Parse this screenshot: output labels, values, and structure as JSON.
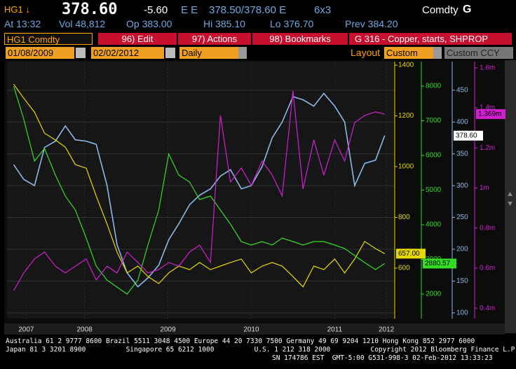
{
  "header": {
    "ticker": "HG1 ↓",
    "last": "378.60",
    "change": "-5.60",
    "flags": "E E",
    "bid_ask": "378.50/378.60 E",
    "size": "6x3",
    "asset_class": "Comdty",
    "function_key": "G",
    "time": "At 13:32",
    "volume": "Vol 48,812",
    "open": "Op 383.00",
    "high": "Hi 385.10",
    "low": "Lo 376.70",
    "prev": "Prev 384.20"
  },
  "toolbar": {
    "security": "HG1 Comdty",
    "edit": "96) Edit",
    "actions": "97) Actions",
    "bookmarks": "98) Bookmarks",
    "chart_name": "G 316 - Copper, starts, SHPROP",
    "start_date": "01/08/2009",
    "end_date": "02/02/2012",
    "period": "Daily",
    "layout_label": "Layout",
    "layout": "Custom",
    "currency": "Custom CCY"
  },
  "chart_data": {
    "type": "line",
    "grid": true,
    "x": [
      2007.15,
      2007.27,
      2007.4,
      2007.52,
      2007.65,
      2007.77,
      2007.89,
      2008.02,
      2008.14,
      2008.27,
      2008.39,
      2008.51,
      2008.64,
      2008.76,
      2008.89,
      2009.01,
      2009.13,
      2009.26,
      2009.38,
      2009.51,
      2009.63,
      2009.75,
      2009.88,
      2010.0,
      2010.13,
      2010.25,
      2010.37,
      2010.5,
      2010.62,
      2010.75,
      2010.87,
      2011.0,
      2011.12,
      2011.24,
      2011.36,
      2011.49,
      2011.6
    ],
    "xlim": [
      2007.07,
      2011.72
    ],
    "xticks": [
      {
        "value": 2007.3,
        "label": "2007"
      },
      2008,
      2009,
      2010,
      2011,
      {
        "value": 2011.62,
        "label": "2012"
      }
    ],
    "ylim": [
      91,
      495
    ],
    "yticks": [
      100,
      150,
      200,
      250,
      300,
      350,
      400,
      450
    ],
    "y2lim": [
      401,
      1414
    ],
    "y2ticks": [
      600,
      800,
      1000,
      1200,
      1400
    ],
    "y3lim": [
      1293,
      8707
    ],
    "y3ticks": [
      2000,
      3000,
      4000,
      5000,
      6000,
      7000,
      8000
    ],
    "y4lim": [
      348000,
      1631000
    ],
    "y4ticks": [
      {
        "value": 400000,
        "label": "0.4m"
      },
      {
        "value": 600000,
        "label": "0.6m"
      },
      {
        "value": 800000,
        "label": "0.8m"
      },
      {
        "value": 1000000,
        "label": "1m"
      },
      {
        "value": 1200000,
        "label": "1.2m"
      },
      {
        "value": 1400000,
        "label": "1.4m"
      },
      {
        "value": 1600000,
        "label": "1.6m"
      }
    ],
    "series": [
      {
        "name": "HG1 Comdty",
        "axis": "y",
        "color": "#8ab8e8",
        "values": [
          333,
          310,
          300,
          360,
          370,
          394,
          372,
          370,
          365,
          300,
          207,
          163,
          141,
          155,
          175,
          215,
          240,
          270,
          285,
          295,
          315,
          325,
          295,
          300,
          330,
          375,
          400,
          440,
          435,
          425,
          445,
          425,
          400,
          300,
          335,
          340,
          378.6
        ],
        "value_labels": [
          null,
          null,
          null,
          null,
          null,
          null,
          null,
          null,
          null,
          null,
          null,
          null,
          null,
          null,
          null,
          null,
          null,
          null,
          null,
          null,
          null,
          null,
          null,
          null,
          null,
          null,
          null,
          null,
          null,
          null,
          null,
          null,
          null,
          null,
          null,
          null,
          "378.60"
        ]
      },
      {
        "axis": "y2",
        "color": "#e8d800",
        "values": [
          1325,
          1270,
          1215,
          1132,
          1105,
          1077,
          1008,
          994,
          884,
          774,
          663,
          581,
          608,
          567,
          539,
          581,
          608,
          594,
          622,
          594,
          608,
          622,
          636,
          581,
          608,
          622,
          608,
          567,
          526,
          608,
          594,
          636,
          581,
          636,
          705,
          677,
          657
        ],
        "value_labels": [
          null,
          null,
          null,
          null,
          null,
          null,
          null,
          null,
          null,
          null,
          null,
          null,
          null,
          null,
          null,
          null,
          null,
          null,
          null,
          null,
          null,
          null,
          null,
          null,
          null,
          null,
          null,
          null,
          null,
          null,
          null,
          null,
          null,
          null,
          null,
          null,
          "657.00"
        ]
      },
      {
        "axis": "y3",
        "color": "#33dd22",
        "values": [
          8000,
          7051,
          5838,
          6200,
          5434,
          4828,
          4424,
          3616,
          2808,
          2404,
          2202,
          2000,
          2404,
          3414,
          4424,
          6040,
          5434,
          5232,
          4727,
          4828,
          4424,
          4020,
          3515,
          3414,
          3515,
          3414,
          3616,
          3515,
          3414,
          3515,
          3515,
          3414,
          3313,
          3111,
          2909,
          2707,
          2880.57
        ],
        "value_labels": [
          null,
          null,
          null,
          null,
          null,
          null,
          null,
          null,
          null,
          null,
          null,
          null,
          null,
          null,
          null,
          null,
          null,
          null,
          null,
          null,
          null,
          null,
          null,
          null,
          null,
          null,
          null,
          null,
          null,
          null,
          null,
          null,
          null,
          null,
          null,
          null,
          "2880.57"
        ]
      },
      {
        "axis": "y4",
        "color": "#d020d0",
        "values": [
          488000,
          576000,
          646000,
          680000,
          610000,
          576000,
          610000,
          646000,
          541000,
          610000,
          576000,
          680000,
          628000,
          576000,
          593000,
          628000,
          610000,
          680000,
          715000,
          628000,
          1362000,
          1030000,
          1100000,
          1013000,
          1135000,
          1065000,
          960000,
          1485000,
          995000,
          1240000,
          1065000,
          1240000,
          1135000,
          1327000,
          1362000,
          1380000,
          1369000
        ],
        "value_labels": [
          null,
          null,
          null,
          null,
          null,
          null,
          null,
          null,
          null,
          null,
          null,
          null,
          null,
          null,
          null,
          null,
          null,
          null,
          null,
          null,
          null,
          null,
          null,
          null,
          null,
          null,
          null,
          null,
          null,
          null,
          null,
          null,
          null,
          null,
          null,
          null,
          "1.369m"
        ]
      }
    ]
  },
  "footer": {
    "lines": [
      "Australia 61 2 9777 8600 Brazil 5511 3048 4500 Europe 44 20 7330 7500 Germany 49 69 9204 1210 Hong Kong 852 2977 6000",
      "Japan 81 3 3201 8900          Singapore 65 6212 1000          U.S. 1 212 318 2000          Copyright 2012 Bloomberg Finance L.P.",
      "SN 174786 EST  GMT-5:00 G531-998-3 02-Feb-2012 13:33:23"
    ]
  }
}
